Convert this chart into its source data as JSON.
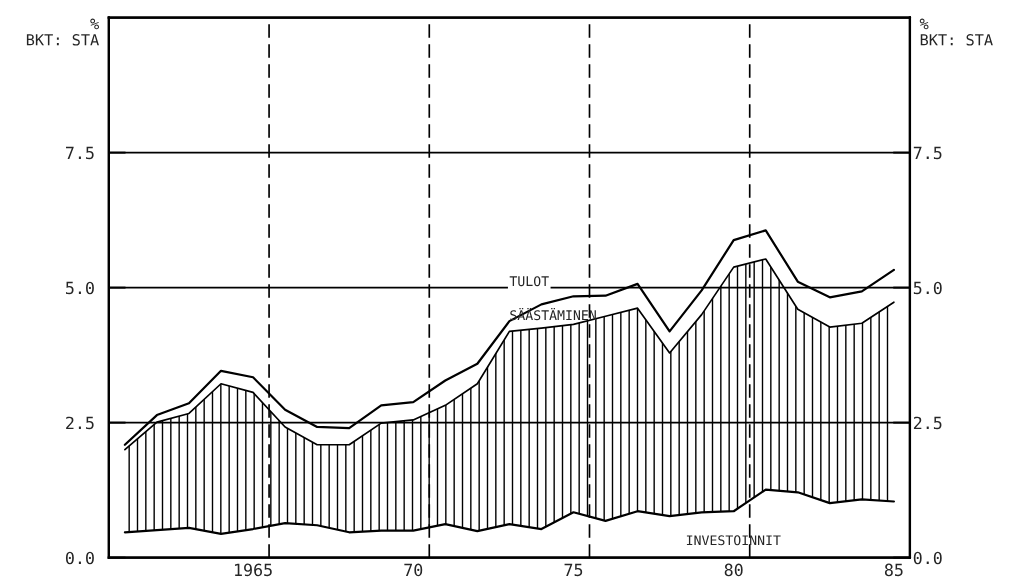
{
  "chart_data": {
    "type": "line",
    "ylabel": "%\nBKT: STA",
    "y2label": "%\nBKT: STA",
    "x": [
      1961,
      1962,
      1963,
      1964,
      1965,
      1966,
      1967,
      1968,
      1969,
      1970,
      1971,
      1972,
      1973,
      1974,
      1975,
      1976,
      1977,
      1978,
      1979,
      1980,
      1981,
      1982,
      1983,
      1984,
      1985
    ],
    "series": [
      {
        "name": "TULOT",
        "color": "#000000",
        "values": [
          2.09,
          2.64,
          2.86,
          3.46,
          3.34,
          2.74,
          2.42,
          2.4,
          2.82,
          2.88,
          3.28,
          3.59,
          4.38,
          4.69,
          4.84,
          4.85,
          5.07,
          4.19,
          4.95,
          5.88,
          6.06,
          5.11,
          4.82,
          4.93,
          5.33
        ]
      },
      {
        "name": "SÄÄSTÄMINEN",
        "type": "area",
        "color": "#000000",
        "values": [
          2.0,
          2.51,
          2.67,
          3.22,
          3.06,
          2.42,
          2.09,
          2.09,
          2.49,
          2.55,
          2.82,
          3.22,
          4.19,
          4.25,
          4.32,
          4.47,
          4.62,
          3.79,
          4.5,
          5.38,
          5.53,
          4.6,
          4.27,
          4.34,
          4.73
        ]
      },
      {
        "name": "INVESTOINNIT",
        "color": "#000000",
        "values": [
          0.47,
          0.51,
          0.55,
          0.44,
          0.53,
          0.64,
          0.6,
          0.47,
          0.5,
          0.5,
          0.62,
          0.49,
          0.62,
          0.53,
          0.84,
          0.68,
          0.86,
          0.77,
          0.84,
          0.86,
          1.26,
          1.21,
          1.01,
          1.08,
          1.04
        ]
      }
    ],
    "xlim": [
      1960.5,
      1985.5
    ],
    "xticks": [
      {
        "value": 1965,
        "label": "1965"
      },
      {
        "value": 1970,
        "label": "70"
      },
      {
        "value": 1975,
        "label": "75"
      },
      {
        "value": 1980,
        "label": "80"
      },
      {
        "value": 1985,
        "label": "85"
      }
    ],
    "ylim": [
      0,
      10
    ],
    "yticks": [
      {
        "value": 0,
        "label": "0.0"
      },
      {
        "value": 2.5,
        "label": "2.5"
      },
      {
        "value": 5,
        "label": "5.0"
      },
      {
        "value": 7.5,
        "label": "7.5"
      }
    ],
    "y2lim": [
      0,
      10
    ],
    "y2ticks": [
      {
        "value": 0,
        "label": "0.0"
      },
      {
        "value": 2.5,
        "label": "2.5"
      },
      {
        "value": 5,
        "label": "5.0"
      },
      {
        "value": 7.5,
        "label": "7.5"
      }
    ],
    "ref_lines": [
      {
        "axis": "y",
        "value": 2.5,
        "line_style": "solid",
        "color": "#000000"
      },
      {
        "axis": "y",
        "value": 5.0,
        "line_style": "solid",
        "color": "#000000"
      },
      {
        "axis": "y",
        "value": 7.5,
        "line_style": "solid",
        "color": "#000000"
      },
      {
        "axis": "x",
        "value": 1965.5,
        "line_style": "dashed",
        "color": "#000000"
      },
      {
        "axis": "x",
        "value": 1970.5,
        "line_style": "dashed",
        "color": "#000000"
      },
      {
        "axis": "x",
        "value": 1975.5,
        "line_style": "dashed",
        "color": "#000000"
      },
      {
        "axis": "x",
        "value": 1980.5,
        "line_style": "dashed",
        "color": "#000000"
      }
    ],
    "grid": false,
    "legend": false
  }
}
